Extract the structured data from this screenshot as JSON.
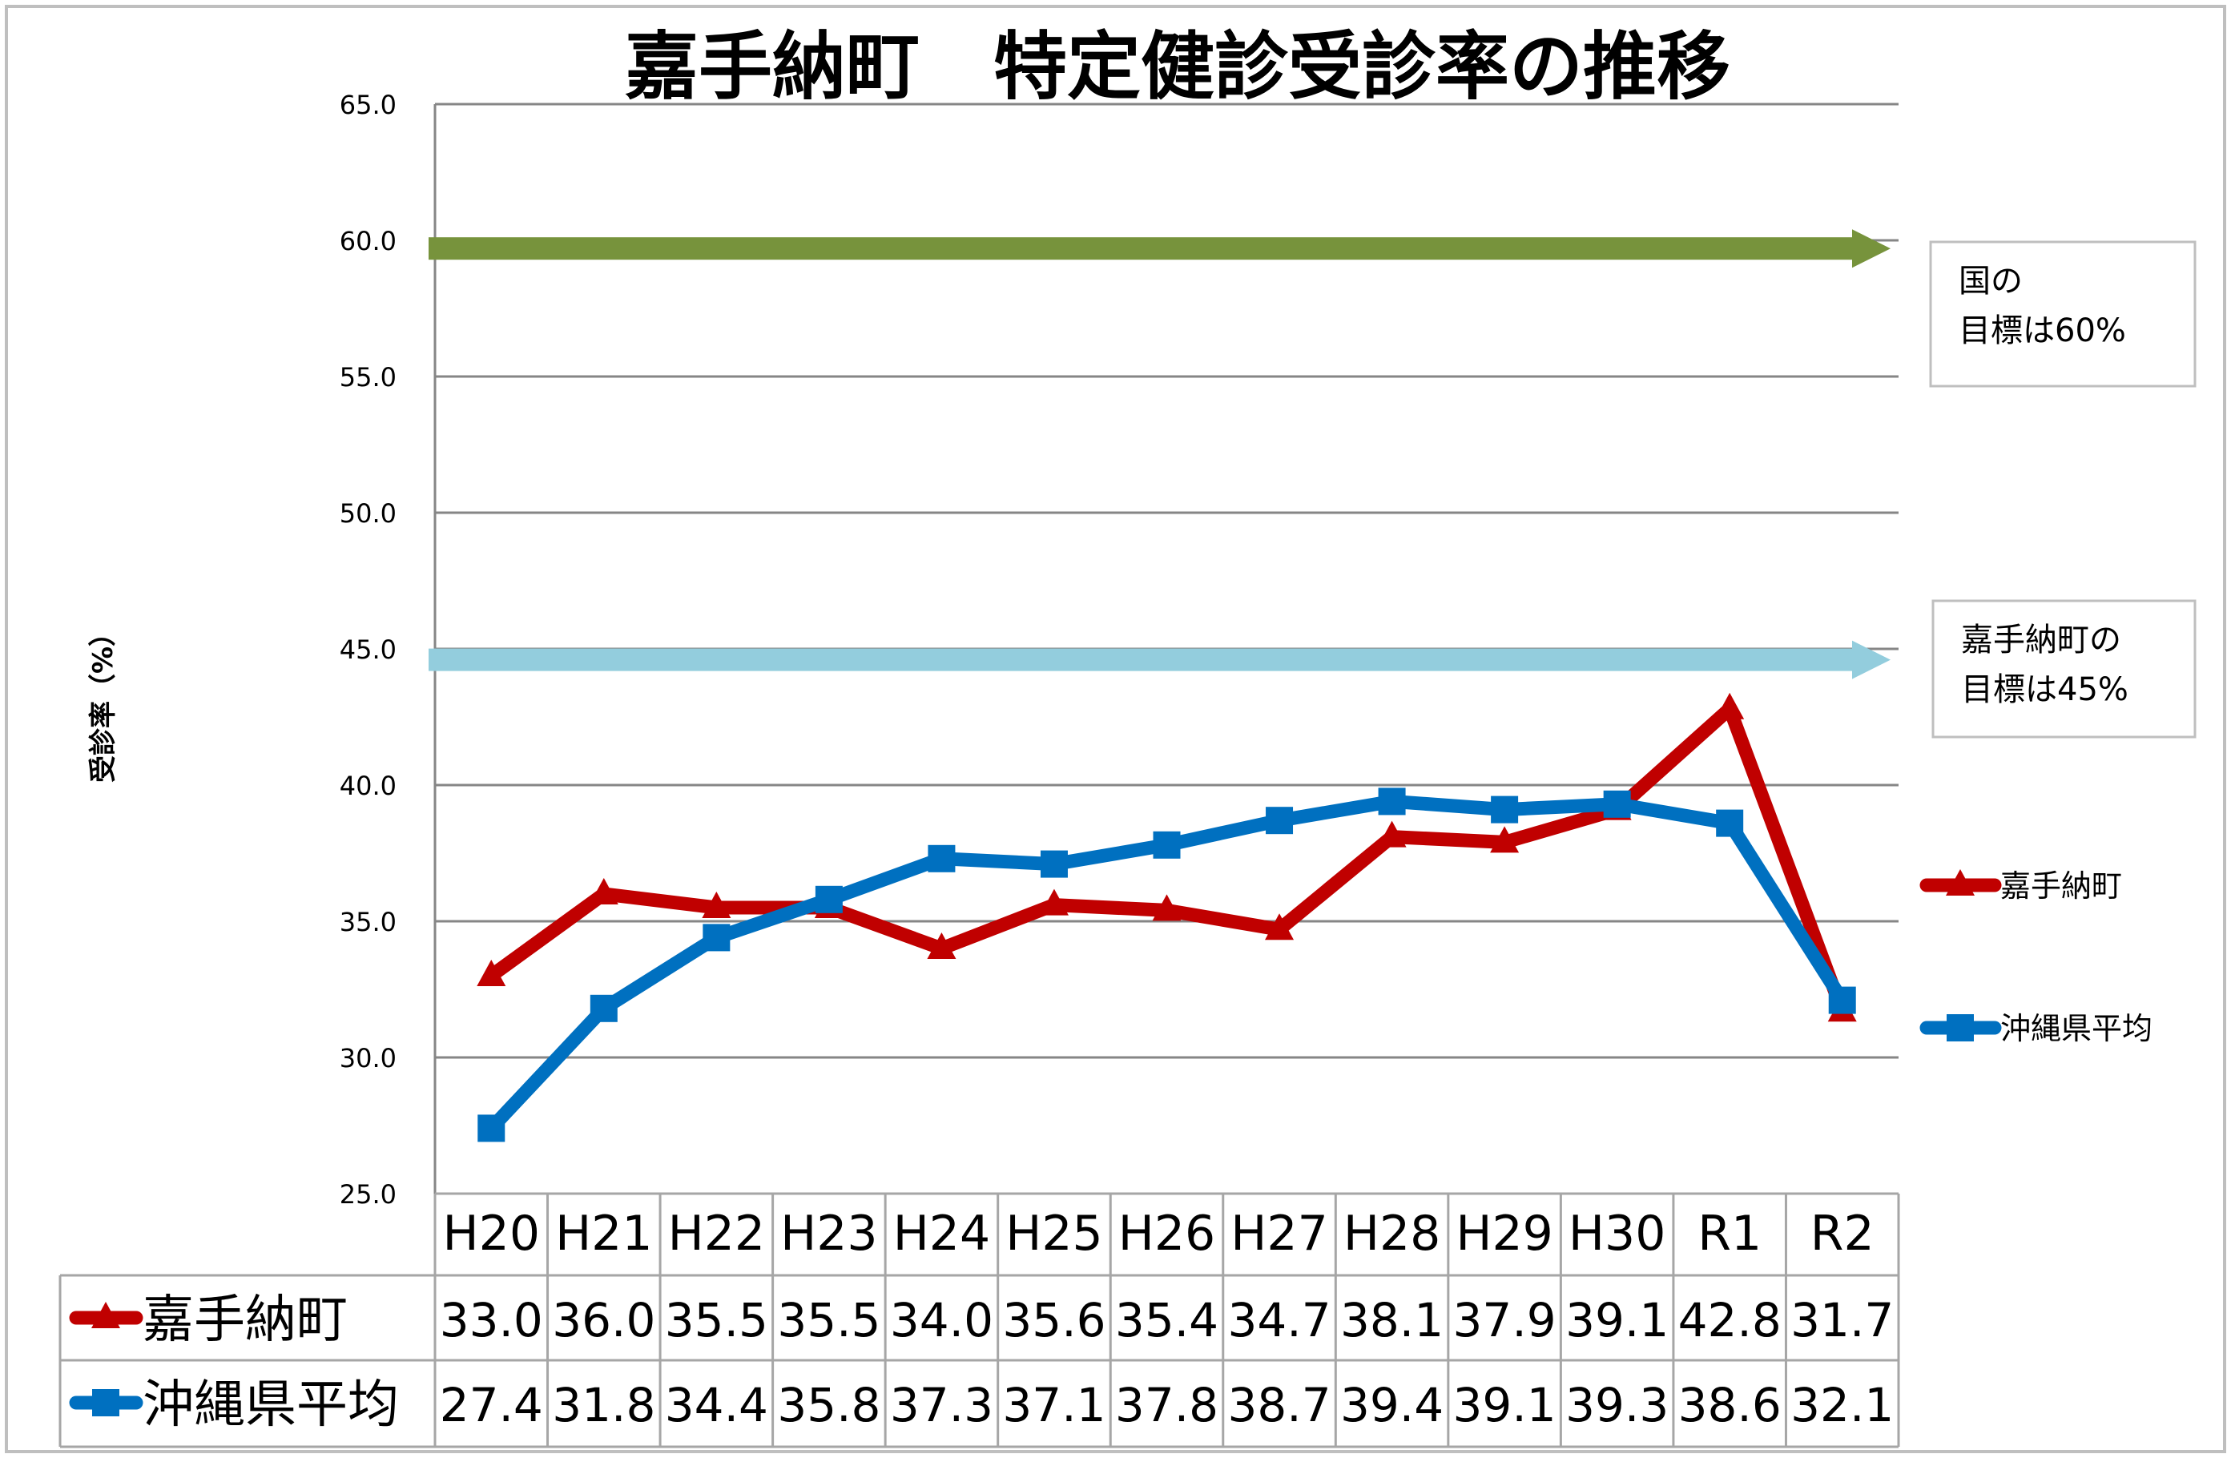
{
  "chart_data": {
    "type": "line",
    "title": "嘉手納町　特定健診受診率の推移",
    "ylabel": "受診率（%）",
    "xlabel": "",
    "ylim": [
      25.0,
      65.0
    ],
    "yticks": [
      "65.0",
      "60.0",
      "55.0",
      "50.0",
      "45.0",
      "40.0",
      "35.0",
      "30.0",
      "25.0"
    ],
    "ytick_values": [
      65,
      60,
      55,
      50,
      45,
      40,
      35,
      30,
      25
    ],
    "grid": true,
    "categories": [
      "H20",
      "H21",
      "H22",
      "H23",
      "H24",
      "H25",
      "H26",
      "H27",
      "H28",
      "H29",
      "H30",
      "R1",
      "R2"
    ],
    "series": [
      {
        "name": "嘉手納町",
        "color": "#c00000",
        "marker": "triangle",
        "values": [
          33.0,
          36.0,
          35.5,
          35.5,
          34.0,
          35.6,
          35.4,
          34.7,
          38.1,
          37.9,
          39.1,
          42.8,
          31.7
        ],
        "labels": [
          "33.0",
          "36.0",
          "35.5",
          "35.5",
          "34.0",
          "35.6",
          "35.4",
          "34.7",
          "38.1",
          "37.9",
          "39.1",
          "42.8",
          "31.7"
        ]
      },
      {
        "name": "沖縄県平均",
        "color": "#0070c0",
        "marker": "square",
        "values": [
          27.4,
          31.8,
          34.4,
          35.8,
          37.3,
          37.1,
          37.8,
          38.7,
          39.4,
          39.1,
          39.3,
          38.6,
          32.1
        ],
        "labels": [
          "27.4",
          "31.8",
          "34.4",
          "35.8",
          "37.3",
          "37.1",
          "37.8",
          "38.7",
          "39.4",
          "39.1",
          "39.3",
          "38.6",
          "32.1"
        ]
      }
    ],
    "targets": [
      {
        "value": 59.7,
        "color": "#77933c",
        "label_lines": [
          "国の",
          "目標は60%"
        ]
      },
      {
        "value": 44.6,
        "color": "#93cddd",
        "label_lines": [
          "嘉手納町の",
          "目標は45%"
        ]
      }
    ],
    "legend_position": "right",
    "data_table": true
  }
}
